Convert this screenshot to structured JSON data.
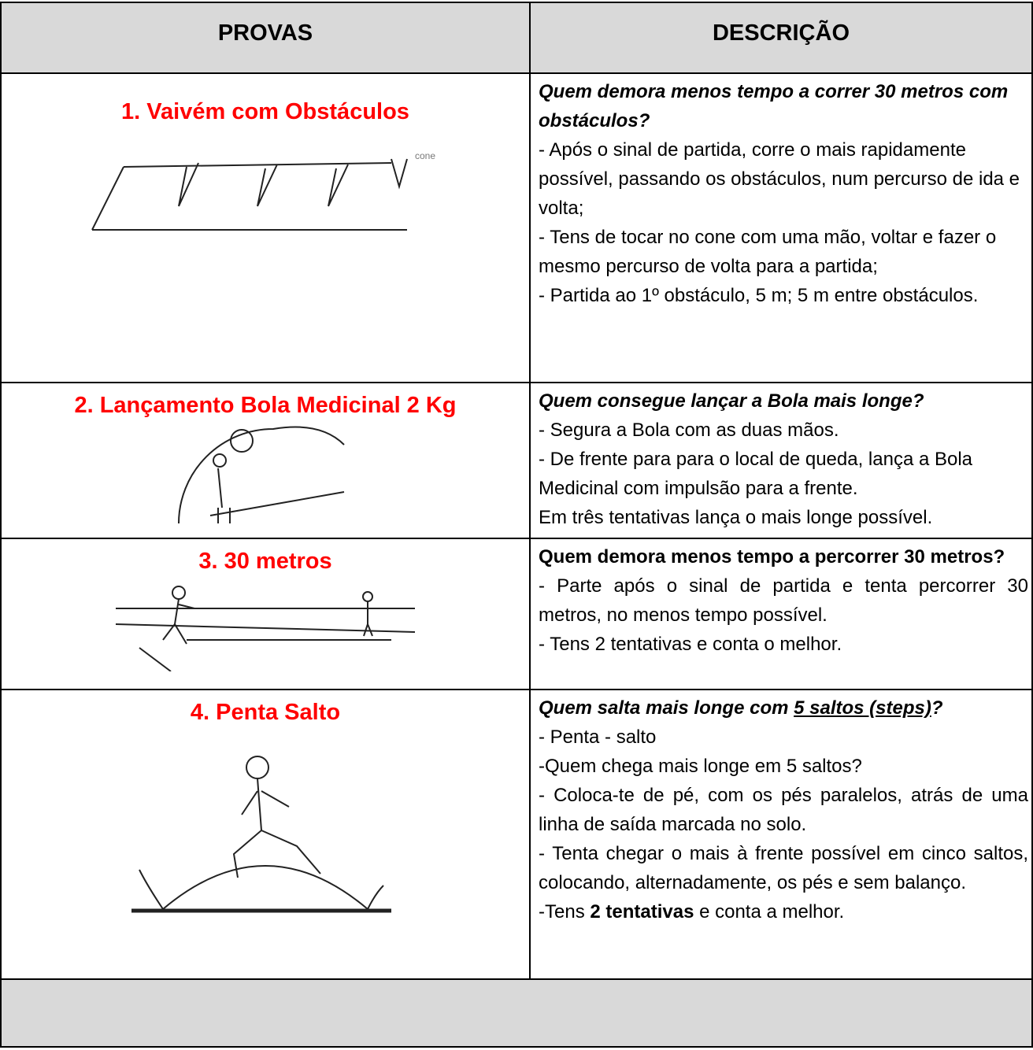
{
  "header": [
    "PROVAS",
    "DESCRIÇÃO"
  ],
  "rows": [
    {
      "title": "1. Vaivém com Obstáculos",
      "figure_label": "cone",
      "question": [
        "Quem demora menos tempo a correr 30 metros com obstáculos?"
      ],
      "paragraphs": [
        [
          "- Após o sinal de partida, corre o mais rapidamente possível, passando os obstáculos, num percurso de ida e volta;"
        ],
        [
          "- Tens de tocar no cone com uma mão, voltar e fazer o mesmo percurso de volta para a partida;"
        ],
        [
          "- Partida ao 1º obstáculo, 5 m; 5 m entre obstáculos."
        ]
      ]
    },
    {
      "title": "2. Lançamento Bola Medicinal 2 Kg",
      "question": [
        "Quem consegue lançar a Bola mais longe?"
      ],
      "paragraphs": [
        [
          "- Segura a Bola com as duas mãos."
        ],
        [
          "- De frente para para o local de queda, lança a Bola Medicinal com impulsão para a frente."
        ],
        [
          "Em três tentativas lança o mais longe possível."
        ]
      ]
    },
    {
      "title": "3.  30 metros",
      "question": [
        "Quem demora menos tempo a percorrer 30 metros?"
      ],
      "paragraphs": [
        [
          "- Parte após o sinal de partida e tenta percorrer 30 metros, no menos tempo possível."
        ],
        [
          "- Tens 2 tentativas e conta o melhor."
        ]
      ]
    },
    {
      "title": "4. Penta Salto",
      "question": [
        "Quem salta mais longe com ",
        "5 saltos (steps)",
        "?"
      ],
      "paragraphs": [
        [
          "- Penta - salto"
        ],
        [
          "-Quem chega mais longe em 5 saltos?"
        ],
        [
          "- Coloca-te de pé, com os pés paralelos, atrás de uma linha de saída marcada no solo."
        ],
        [
          "- Tenta chegar o mais à frente possível em cinco saltos, colocando, alternadamente, os pés e sem balanço."
        ],
        [
          "-Tens ",
          "2 tentativas",
          " e conta a melhor."
        ]
      ]
    }
  ]
}
